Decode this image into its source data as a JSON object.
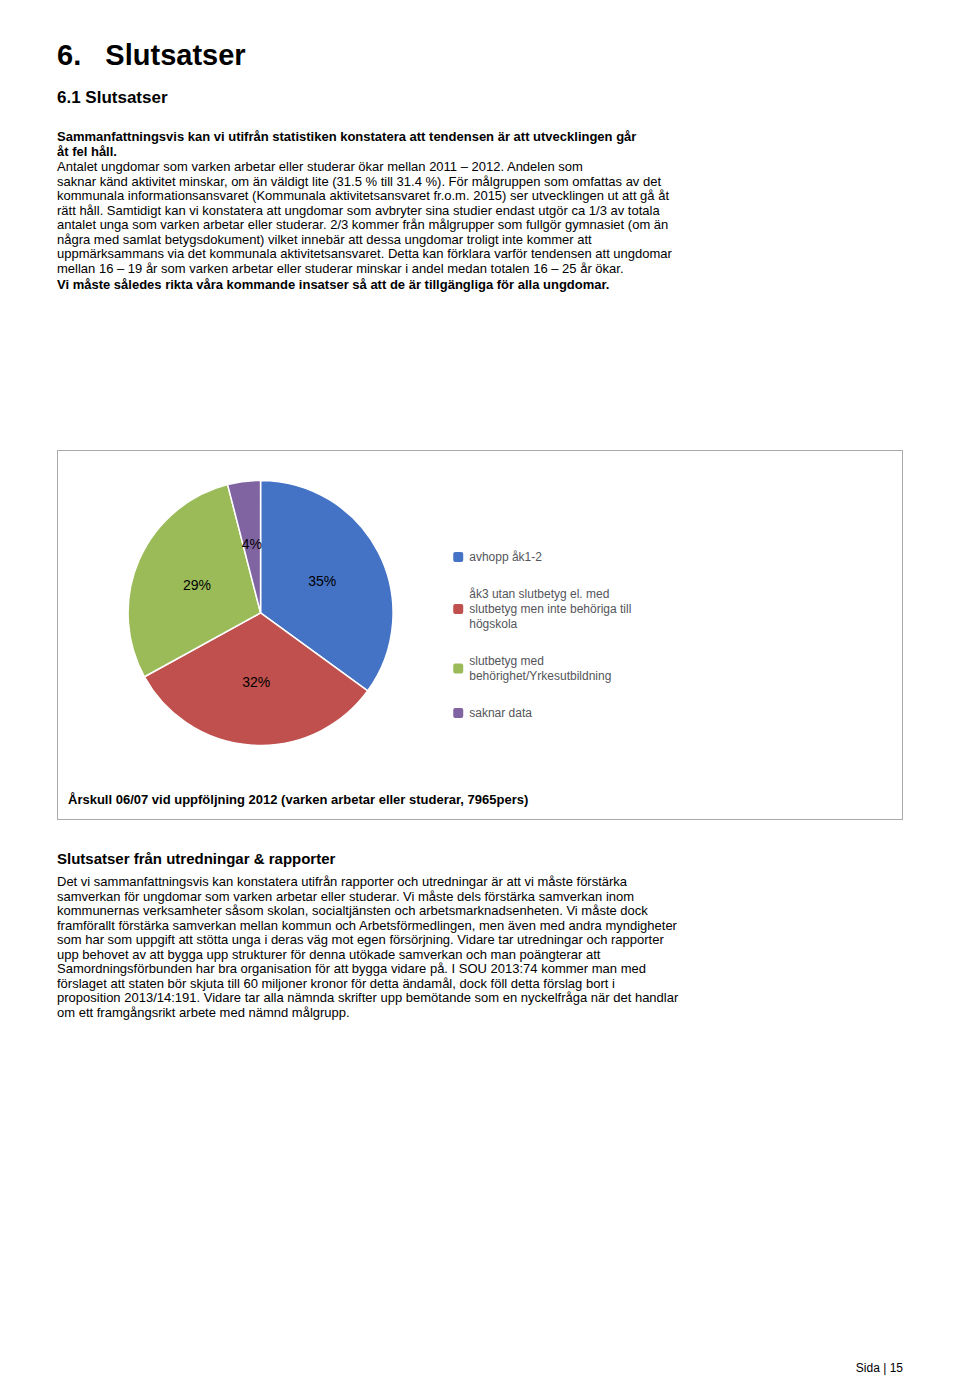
{
  "chart_data": {
    "type": "pie",
    "title": "Årskull 06/07 vid uppföljning 2012 (varken arbetar eller studerar, 7965pers)",
    "categories": [
      "avhopp åk1-2",
      "åk3 utan slutbetyg el. med\nslutbetyg men inte behöriga till\nhögskola",
      "slutbetyg med\nbehörighet/Yrkesutbildning",
      "saknar data"
    ],
    "values": [
      35,
      32,
      29,
      4
    ],
    "value_labels": [
      "35%",
      "32%",
      "29%",
      "4%"
    ],
    "colors": [
      "#4472C4",
      "#C0504D",
      "#9BBB59",
      "#8064A2"
    ],
    "data_labels": true,
    "legend": "right",
    "annotations": [
      "6.   Slutsatser",
      "6.1 Slutsatser",
      "Sammanfattningsvis kan vi utifrån statistiken konstatera att tendensen är att utvecklingen går",
      "åt fel håll.",
      "Antalet ungdomar som varken arbetar eller studerar ökar mellan 2011 – 2012. Andelen som",
      "saknar känd aktivitet minskar, om än väldigt lite (31.5 % till 31.4 %). För målgruppen som omfattas av det",
      "kommunala informationsansvaret (Kommunala aktivitetsansvaret fr.o.m. 2015) ser utvecklingen ut att gå åt",
      "rätt håll. Samtidigt kan vi konstatera att ungdomar som avbryter sina studier endast utgör ca 1/3 av totala",
      "antalet unga som varken arbetar eller studerar. 2/3 kommer från målgrupper som fullgör gymnasiet (om än",
      "några med samlat betygsdokument) vilket innebär att dessa ungdomar troligt inte kommer att",
      "uppmärksammans via det kommunala aktivitetsansvaret. Detta kan förklara varför tendensen att ungdomar",
      "mellan 16 – 19 år som varken arbetar eller studerar minskar i andel medan totalen 16 – 25 år ökar.",
      "Vi måste således rikta våra kommande insatser så att de är tillgängliga för alla ungdomar.",
      "Slutsatser från utredningar & rapporter",
      "Det vi sammanfattningsvis kan konstatera utifrån rapporter och utredningar är att vi måste förstärka",
      "samverkan för ungdomar som varken arbetar eller studerar. Vi måste dels förstärka samverkan inom",
      "kommunernas verksamheter såsom skolan, socialtjänsten och arbetsmarknadsenheten. Vi måste dock",
      "framförallt förstärka samverkan mellan kommun och Arbetsförmedlingen, men även med andra myndigheter",
      "som har som uppgift att stötta unga i deras väg mot egen försörjning. Vidare tar utredningar och rapporter",
      "upp behovet av att bygga upp strukturer för denna utökade samverkan och man poängterar att",
      "Samordningsförbunden har bra organisation för att bygga vidare på. I SOU 2013:74 kommer man med",
      "förslaget att staten bör skjuta till 60 miljoner kronor för detta ändamål, dock föll detta förslag bort i",
      "proposition 2013/14:191. Vidare tar alla nämnda skrifter upp bemötande som en nyckelfråga när det handlar",
      "om ett framgångsrikt arbete med nämnd målgrupp.",
      "Sida | 15"
    ]
  }
}
